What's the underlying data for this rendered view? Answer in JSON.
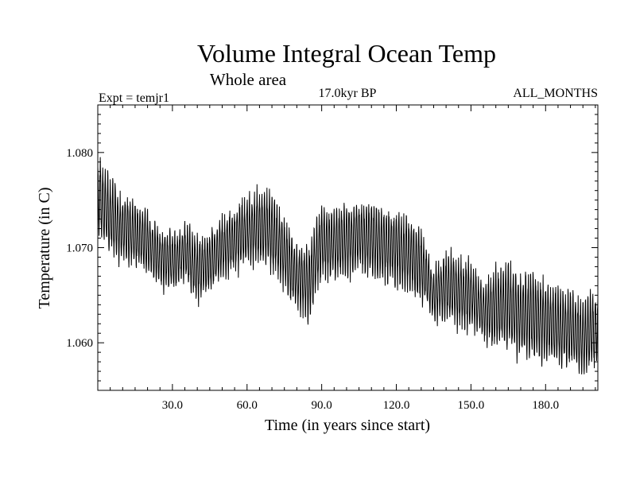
{
  "chart_data": {
    "type": "line",
    "title": "Volume Integral Ocean Temp",
    "subtitle": "Whole area",
    "expt_label": "Expt = temjr1",
    "period_label": "17.0kyr BP",
    "months_label": "ALL_MONTHS",
    "xlabel": "Time (in years since start)",
    "ylabel": "Temperature (in C)",
    "xlim": [
      0,
      201
    ],
    "ylim": [
      1.055,
      1.085
    ],
    "x_ticks": [
      30,
      60,
      90,
      120,
      150,
      180
    ],
    "x_tick_labels": [
      "30.0",
      "60.0",
      "90.0",
      "120.0",
      "150.0",
      "180.0"
    ],
    "y_ticks": [
      1.06,
      1.07,
      1.08
    ],
    "y_tick_labels": [
      "1.060",
      "1.070",
      "1.080"
    ],
    "series": [
      {
        "name": "Volume Integral Ocean Temp",
        "color": "#000000",
        "description": "Monthly values oscillating with ~1-year seasonal cycle; upper and lower envelopes (yearly max/min) in degrees C",
        "years": [
          0,
          2,
          5,
          10,
          15,
          20,
          25,
          30,
          35,
          40,
          45,
          50,
          55,
          60,
          65,
          70,
          75,
          80,
          85,
          90,
          95,
          100,
          105,
          110,
          115,
          120,
          125,
          130,
          135,
          140,
          145,
          150,
          155,
          160,
          165,
          170,
          175,
          180,
          185,
          190,
          195,
          201
        ],
        "upper": [
          1.08,
          1.079,
          1.0775,
          1.076,
          1.075,
          1.074,
          1.0725,
          1.072,
          1.073,
          1.0715,
          1.072,
          1.0735,
          1.0745,
          1.076,
          1.0765,
          1.076,
          1.0735,
          1.0705,
          1.071,
          1.075,
          1.0745,
          1.075,
          1.0755,
          1.0752,
          1.0745,
          1.0745,
          1.0735,
          1.0725,
          1.068,
          1.07,
          1.0695,
          1.069,
          1.0665,
          1.0685,
          1.069,
          1.068,
          1.068,
          1.067,
          1.066,
          1.066,
          1.065,
          1.066
        ],
        "lower": [
          1.0715,
          1.07,
          1.069,
          1.068,
          1.0678,
          1.067,
          1.0655,
          1.065,
          1.066,
          1.064,
          1.065,
          1.0665,
          1.067,
          1.0675,
          1.068,
          1.067,
          1.065,
          1.063,
          1.062,
          1.0665,
          1.066,
          1.0665,
          1.067,
          1.0665,
          1.066,
          1.0655,
          1.065,
          1.064,
          1.062,
          1.062,
          1.061,
          1.061,
          1.06,
          1.059,
          1.0585,
          1.058,
          1.0575,
          1.0575,
          1.057,
          1.057,
          1.056,
          1.057
        ]
      }
    ]
  }
}
